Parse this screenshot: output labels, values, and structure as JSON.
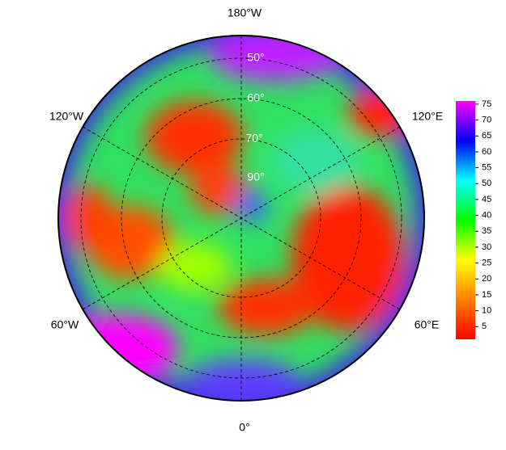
{
  "map": {
    "longitude_labels": [
      "180°W",
      "120°E",
      "60°E",
      "0°",
      "60°W",
      "120°W"
    ],
    "latitude_labels": [
      "50°",
      "60°",
      "70°",
      "90°"
    ],
    "colorbar": {
      "lim": [
        1,
        76
      ],
      "ticks": [
        5,
        10,
        15,
        20,
        25,
        30,
        35,
        40,
        45,
        50,
        55,
        60,
        65,
        70,
        75
      ],
      "colors": [
        "#ff0000",
        "#ff8000",
        "#ffff00",
        "#00ff00",
        "#00ffff",
        "#0000ff",
        "#ff00ff"
      ]
    }
  }
}
